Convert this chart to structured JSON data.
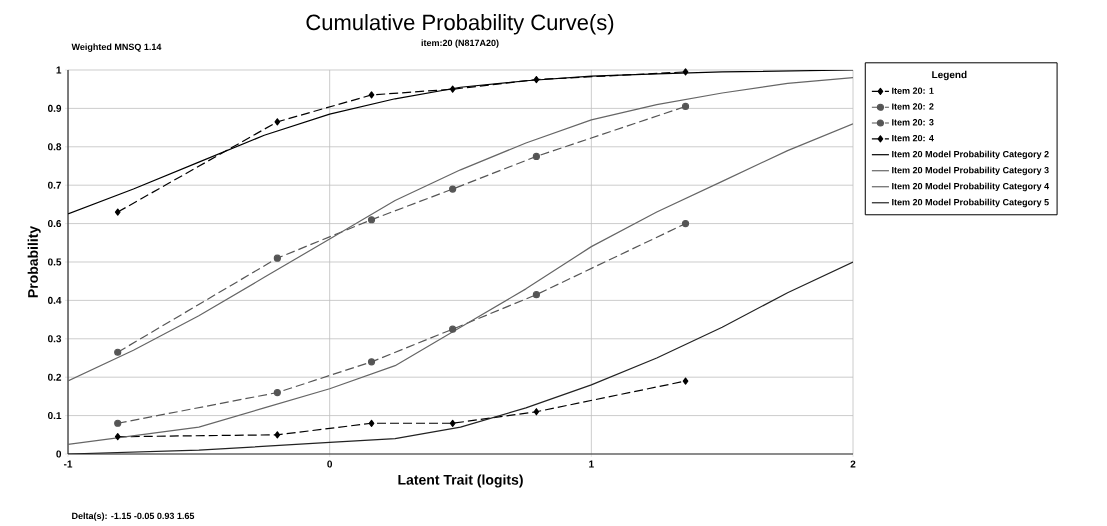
{
  "chart_data": {
    "type": "line",
    "title": "Cumulative Probability Curve(s)",
    "subtitle": "item:20 (N817A20)",
    "xlabel": "Latent Trait (logits)",
    "ylabel": "Probability",
    "legend_title": "Legend",
    "annotations": [
      "Weighted MNSQ   1.14",
      "Delta(s):       -1.15 -0.05  0.93  1.65"
    ],
    "xlim": [
      -1,
      2
    ],
    "ylim": [
      0,
      1
    ],
    "xticks": [
      -1,
      0,
      1,
      2
    ],
    "yticks": [
      0,
      0.1,
      0.2,
      0.3,
      0.4,
      0.5,
      0.6,
      0.7,
      0.8,
      0.9,
      1
    ],
    "grid": true,
    "legend": "top right",
    "series": [
      {
        "name": "Item 20: 1",
        "color": "#000000",
        "marker": "diamond",
        "line_style": "dashed",
        "x": [
          -0.81,
          -0.2,
          0.16,
          0.47,
          0.79,
          1.36
        ],
        "values": [
          0.63,
          0.865,
          0.935,
          0.95,
          0.975,
          0.995
        ]
      },
      {
        "name": "Item 20: 2",
        "color": "#555555",
        "marker": "circle",
        "line_style": "dashed",
        "x": [
          -0.81,
          -0.2,
          0.16,
          0.47,
          0.79,
          1.36
        ],
        "values": [
          0.265,
          0.51,
          0.61,
          0.69,
          0.775,
          0.905
        ]
      },
      {
        "name": "Item 20: 3",
        "color": "#555555",
        "marker": "circle",
        "line_style": "dashed",
        "x": [
          -0.81,
          -0.2,
          0.16,
          0.47,
          0.79,
          1.36
        ],
        "values": [
          0.08,
          0.16,
          0.24,
          0.325,
          0.415,
          0.6
        ]
      },
      {
        "name": "Item 20: 4",
        "color": "#000000",
        "marker": "diamond",
        "line_style": "dashed",
        "x": [
          -0.81,
          -0.2,
          0.16,
          0.47,
          0.79,
          1.36
        ],
        "values": [
          0.045,
          0.05,
          0.08,
          0.08,
          0.11,
          0.19
        ]
      },
      {
        "name": "Item 20 Model Probability Category 2",
        "color": "#000000",
        "marker": "none",
        "line_style": "solid",
        "x": [
          -1,
          -0.75,
          -0.5,
          -0.25,
          0,
          0.25,
          0.5,
          0.75,
          1,
          1.25,
          1.5,
          2
        ],
        "values": [
          0.625,
          0.69,
          0.76,
          0.83,
          0.885,
          0.925,
          0.955,
          0.972,
          0.984,
          0.99,
          0.995,
          1.0
        ]
      },
      {
        "name": "Item 20 Model Probability Category 3",
        "color": "#666666",
        "marker": "none",
        "line_style": "solid",
        "x": [
          -1,
          -0.75,
          -0.5,
          -0.25,
          0,
          0.25,
          0.5,
          0.75,
          1,
          1.25,
          1.5,
          1.75,
          2
        ],
        "values": [
          0.19,
          0.27,
          0.36,
          0.46,
          0.56,
          0.66,
          0.74,
          0.81,
          0.87,
          0.91,
          0.94,
          0.965,
          0.98
        ]
      },
      {
        "name": "Item 20 Model Probability Category 4",
        "color": "#666666",
        "marker": "none",
        "line_style": "solid",
        "x": [
          -1,
          -0.5,
          -0.25,
          0,
          0.25,
          0.5,
          0.75,
          1,
          1.25,
          1.5,
          1.75,
          2
        ],
        "values": [
          0.025,
          0.07,
          0.12,
          0.17,
          0.23,
          0.33,
          0.43,
          0.54,
          0.63,
          0.71,
          0.79,
          0.86
        ]
      },
      {
        "name": "Item 20 Model Probability Category 5",
        "color": "#222222",
        "marker": "none",
        "line_style": "solid",
        "x": [
          -1,
          -0.5,
          0,
          0.25,
          0.5,
          0.75,
          1,
          1.25,
          1.5,
          1.75,
          2
        ],
        "values": [
          0.0,
          0.01,
          0.03,
          0.04,
          0.07,
          0.12,
          0.18,
          0.25,
          0.33,
          0.42,
          0.5
        ]
      }
    ]
  }
}
